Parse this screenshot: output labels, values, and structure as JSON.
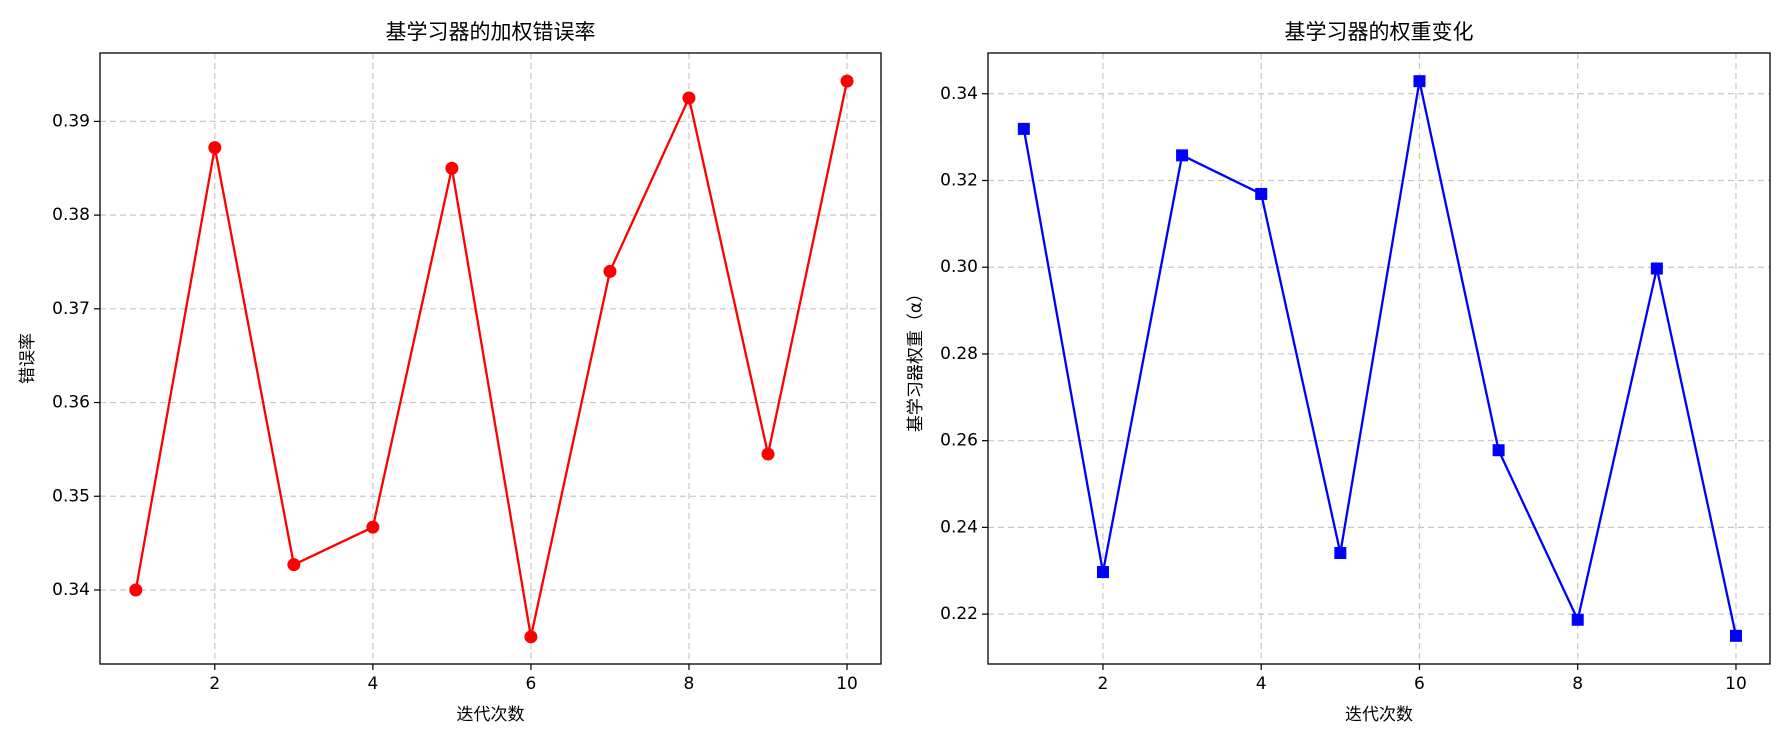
{
  "chart_data": [
    {
      "type": "line",
      "title": "基学习器的加权错误率",
      "x_label": "迭代次数",
      "y_label": "错误率",
      "x": [
        1,
        2,
        3,
        4,
        5,
        6,
        7,
        8,
        9,
        10
      ],
      "series": [
        {
          "name": "错误率",
          "color": "#ff0000",
          "marker": "circle",
          "values": [
            0.34,
            0.3872,
            0.3427,
            0.3467,
            0.385,
            0.335,
            0.374,
            0.3925,
            0.3545,
            0.3943
          ]
        }
      ],
      "xlim": [
        0.547,
        10.43
      ],
      "xticks": [
        2,
        4,
        6,
        8,
        10
      ],
      "ylim": [
        0.3321,
        0.3973
      ],
      "yticks": [
        0.34,
        0.35,
        0.36,
        0.37,
        0.38,
        0.39
      ],
      "grid": true
    },
    {
      "type": "line",
      "title": "基学习器的权重变化",
      "x_label": "迭代次数",
      "y_label": "基学习器权重（α）",
      "x": [
        1,
        2,
        3,
        4,
        5,
        6,
        7,
        8,
        9,
        10
      ],
      "series": [
        {
          "name": "权重",
          "color": "#0000ff",
          "marker": "square",
          "values": [
            0.3319,
            0.2297,
            0.3258,
            0.3169,
            0.2341,
            0.3429,
            0.2578,
            0.2187,
            0.2997,
            0.215
          ]
        }
      ],
      "xlim": [
        0.547,
        10.43
      ],
      "xticks": [
        2,
        4,
        6,
        8,
        10
      ],
      "ylim": [
        0.2085,
        0.3494
      ],
      "yticks": [
        0.22,
        0.24,
        0.26,
        0.28,
        {
          "value": 0.3,
          "label": "0.30"
        },
        0.32,
        0.34
      ],
      "grid": true
    }
  ]
}
